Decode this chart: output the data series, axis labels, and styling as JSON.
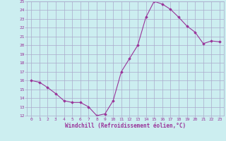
{
  "hours": [
    0,
    1,
    2,
    3,
    4,
    5,
    6,
    7,
    8,
    9,
    10,
    11,
    12,
    13,
    14,
    15,
    16,
    17,
    18,
    19,
    20,
    21,
    22,
    23
  ],
  "values": [
    16,
    15.8,
    15.2,
    14.5,
    13.7,
    13.5,
    13.5,
    13.0,
    12.0,
    12.2,
    13.7,
    17.0,
    18.5,
    20.0,
    23.2,
    25.0,
    24.7,
    24.1,
    23.2,
    22.2,
    21.5,
    20.2,
    20.5,
    20.4
  ],
  "line_color": "#993399",
  "marker": "D",
  "marker_size": 1.8,
  "bg_color": "#cceef0",
  "grid_color": "#aaaacc",
  "xlabel": "Windchill (Refroidissement éolien,°C)",
  "xlabel_color": "#993399",
  "tick_color": "#993399",
  "ylim": [
    12,
    25
  ],
  "yticks": [
    12,
    13,
    14,
    15,
    16,
    17,
    18,
    19,
    20,
    21,
    22,
    23,
    24,
    25
  ],
  "xlim": [
    -0.5,
    23.5
  ]
}
